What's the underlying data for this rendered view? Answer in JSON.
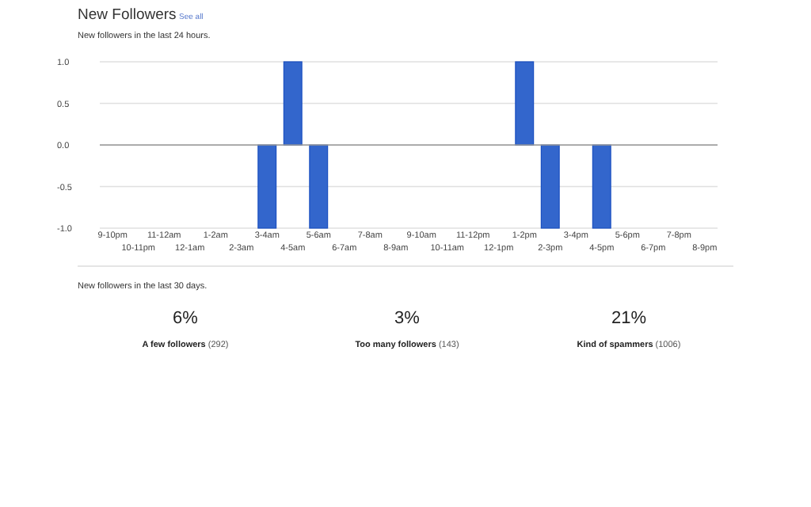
{
  "chart_data": [
    {
      "type": "bar",
      "title": "New Followers",
      "subtitle": "New followers in the last 24 hours.",
      "annotations": [
        "See all"
      ],
      "categories": [
        "9-10pm",
        "10-11pm",
        "11-12am",
        "12-1am",
        "1-2am",
        "2-3am",
        "3-4am",
        "4-5am",
        "5-6am",
        "6-7am",
        "7-8am",
        "8-9am",
        "9-10am",
        "10-11am",
        "11-12pm",
        "12-1pm",
        "1-2pm",
        "2-3pm",
        "3-4pm",
        "4-5pm",
        "5-6pm",
        "6-7pm",
        "7-8pm",
        "8-9pm"
      ],
      "values": [
        0,
        0,
        0,
        0,
        0,
        0,
        -1,
        1,
        -1,
        0,
        0,
        0,
        0,
        0,
        0,
        0,
        1,
        -1,
        0,
        -1,
        0,
        0,
        0,
        0
      ],
      "color": "#3366cc",
      "ylim": [
        -1,
        1
      ],
      "yticks": [
        {
          "value": -1,
          "label": "-1.0"
        },
        {
          "value": -0.5,
          "label": "-0.5"
        },
        {
          "value": 0,
          "label": "0.0"
        },
        {
          "value": 0.5,
          "label": "0.5"
        },
        {
          "value": 1,
          "label": "1.0"
        }
      ],
      "grid": "y"
    },
    {
      "type": "other",
      "title": "New followers in the last 30 days.",
      "categories": [
        "A few followers",
        "Too many followers",
        "Kind of spammers"
      ],
      "value_labels": [
        "6%",
        "3%",
        "21%"
      ],
      "annotations": [
        {
          "text": "(292)",
          "x": "A few followers"
        },
        {
          "text": "(143)",
          "x": "Too many followers"
        },
        {
          "text": "(1006)",
          "x": "Kind of spammers"
        }
      ]
    }
  ]
}
